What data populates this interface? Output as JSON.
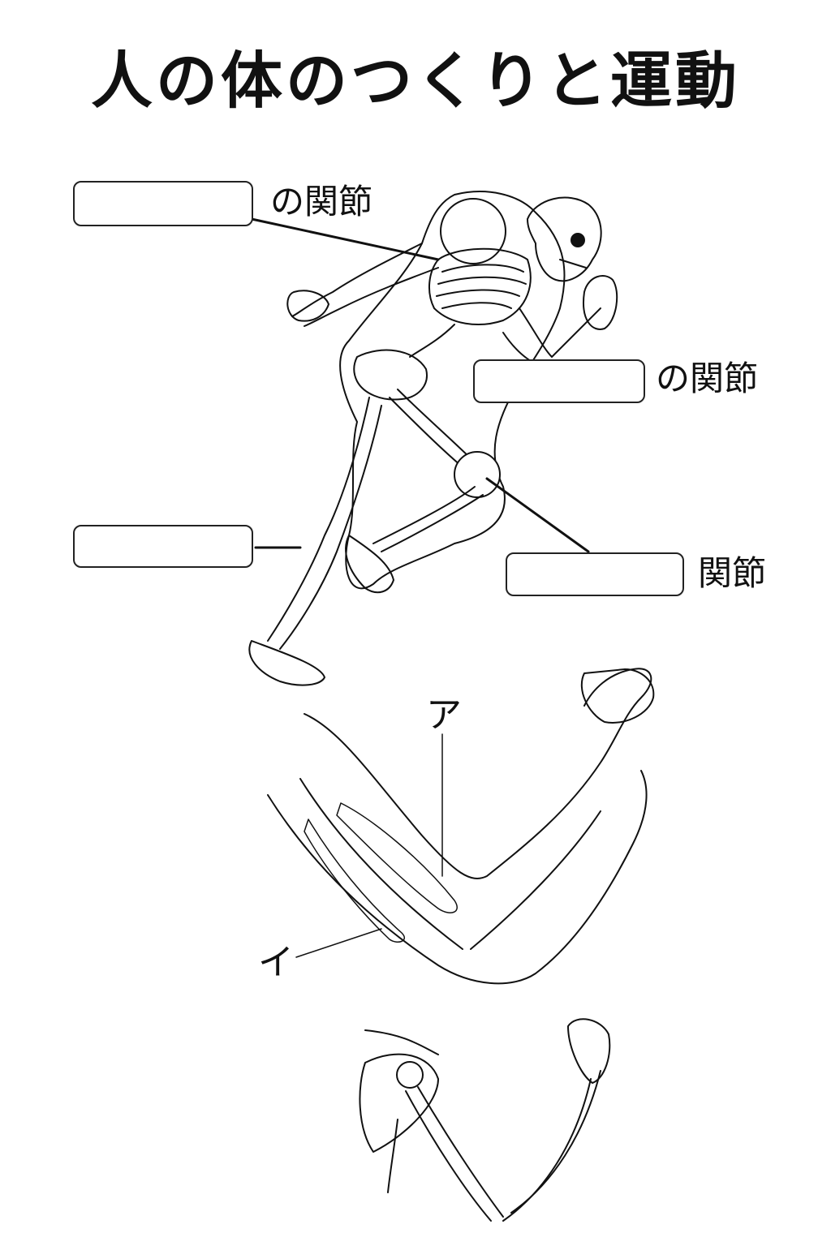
{
  "title": "人の体のつくりと運動",
  "labels": [
    {
      "id": "shoulder",
      "suffix": "の関節",
      "answer": ""
    },
    {
      "id": "elbow",
      "suffix": "の関節",
      "answer": ""
    },
    {
      "id": "bone",
      "suffix": "",
      "answer": ""
    },
    {
      "id": "knee",
      "suffix": "関節",
      "answer": ""
    }
  ],
  "muscle_labels": {
    "a": "ア",
    "i": "イ"
  }
}
